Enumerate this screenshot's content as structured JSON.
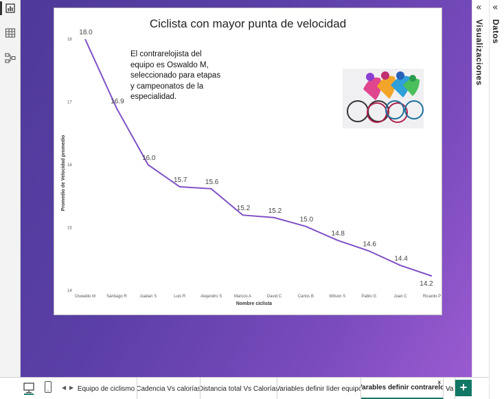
{
  "rail": {
    "items": [
      {
        "name": "report-view-icon",
        "active": true
      },
      {
        "name": "table-view-icon",
        "active": false
      },
      {
        "name": "model-view-icon",
        "active": false
      }
    ]
  },
  "visual": {
    "note": "El contrarelojista del equipo es Oswaldo M, seleccionado para etapas y campeonatos de la especialidad."
  },
  "chart_data": {
    "type": "line",
    "title": "Ciclista con mayor punta de velocidad",
    "xlabel": "Nombre ciclista",
    "ylabel": "Promedio de Velocidad promedio",
    "ylim": [
      14,
      18
    ],
    "yticks": [
      "14",
      "15",
      "16",
      "17",
      "18"
    ],
    "categories": [
      "Oswaldo M",
      "Santiago R",
      "Jualian S",
      "Luis R",
      "Alejandro S",
      "Marcos A",
      "David C",
      "Carlos B",
      "Wilson S",
      "Pablo G",
      "Juan C",
      "Ricardo P"
    ],
    "values": [
      18.0,
      16.9,
      16.0,
      15.65,
      15.62,
      15.2,
      15.16,
      15.02,
      14.8,
      14.63,
      14.4,
      14.23
    ],
    "labels": [
      "18.0",
      "16.9",
      "16.0",
      "15.7",
      "15.6",
      "15.2",
      "15.2",
      "15.0",
      "14.8",
      "14.6",
      "14.4",
      "14.2"
    ],
    "color": "#7f4fc6",
    "grid": false
  },
  "panes": {
    "visualizations": "Visualizaciones",
    "data": "Datos",
    "collapse_glyph": "«"
  },
  "tabs": {
    "items": [
      {
        "label": "Equipo de ciclismo",
        "active": false
      },
      {
        "label": "Cadencia Vs calorías",
        "active": false
      },
      {
        "label": "Distancia total Vs Calorías",
        "active": false
      },
      {
        "label": "Variables definir líder equipo",
        "active": false
      },
      {
        "label": "Varables definir contrareloj",
        "active": true
      },
      {
        "label": "Va",
        "active": false
      }
    ],
    "close_glyph": "x",
    "add_glyph": "+",
    "prev_glyph": "◀",
    "next_glyph": "▶"
  },
  "colors": {
    "accent": "#117865",
    "line": "#7f4fc6"
  }
}
